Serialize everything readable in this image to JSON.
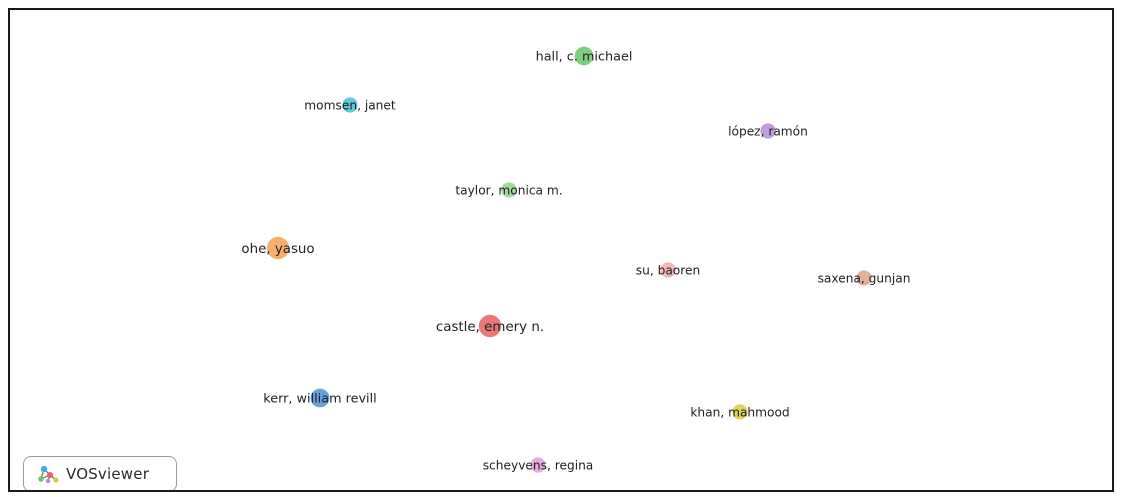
{
  "network": {
    "nodes": [
      {
        "label": "hall, c. michael",
        "color": "#6ac46a",
        "weight": 3
      },
      {
        "label": "momsen, janet",
        "color": "#3fbfd6",
        "weight": 2
      },
      {
        "label": "lópez, ramón",
        "color": "#b58bdd",
        "weight": 2
      },
      {
        "label": "taylor, monica m.",
        "color": "#8ed38e",
        "weight": 2
      },
      {
        "label": "ohe, yasuo",
        "color": "#f3a352",
        "weight": 4
      },
      {
        "label": "su, baoren",
        "color": "#f2a8a8",
        "weight": 2
      },
      {
        "label": "saxena, gunjan",
        "color": "#e3a08a",
        "weight": 2
      },
      {
        "label": "castle, emery n.",
        "color": "#e86060",
        "weight": 4
      },
      {
        "label": "kerr, william revill",
        "color": "#4a90d9",
        "weight": 3
      },
      {
        "label": "khan, mahmood",
        "color": "#d8cc3a",
        "weight": 2
      },
      {
        "label": "scheyvens, regina",
        "color": "#e59ad8",
        "weight": 2
      }
    ]
  },
  "badge": {
    "label": "VOSviewer",
    "icon": "vosviewer-logo-icon"
  }
}
